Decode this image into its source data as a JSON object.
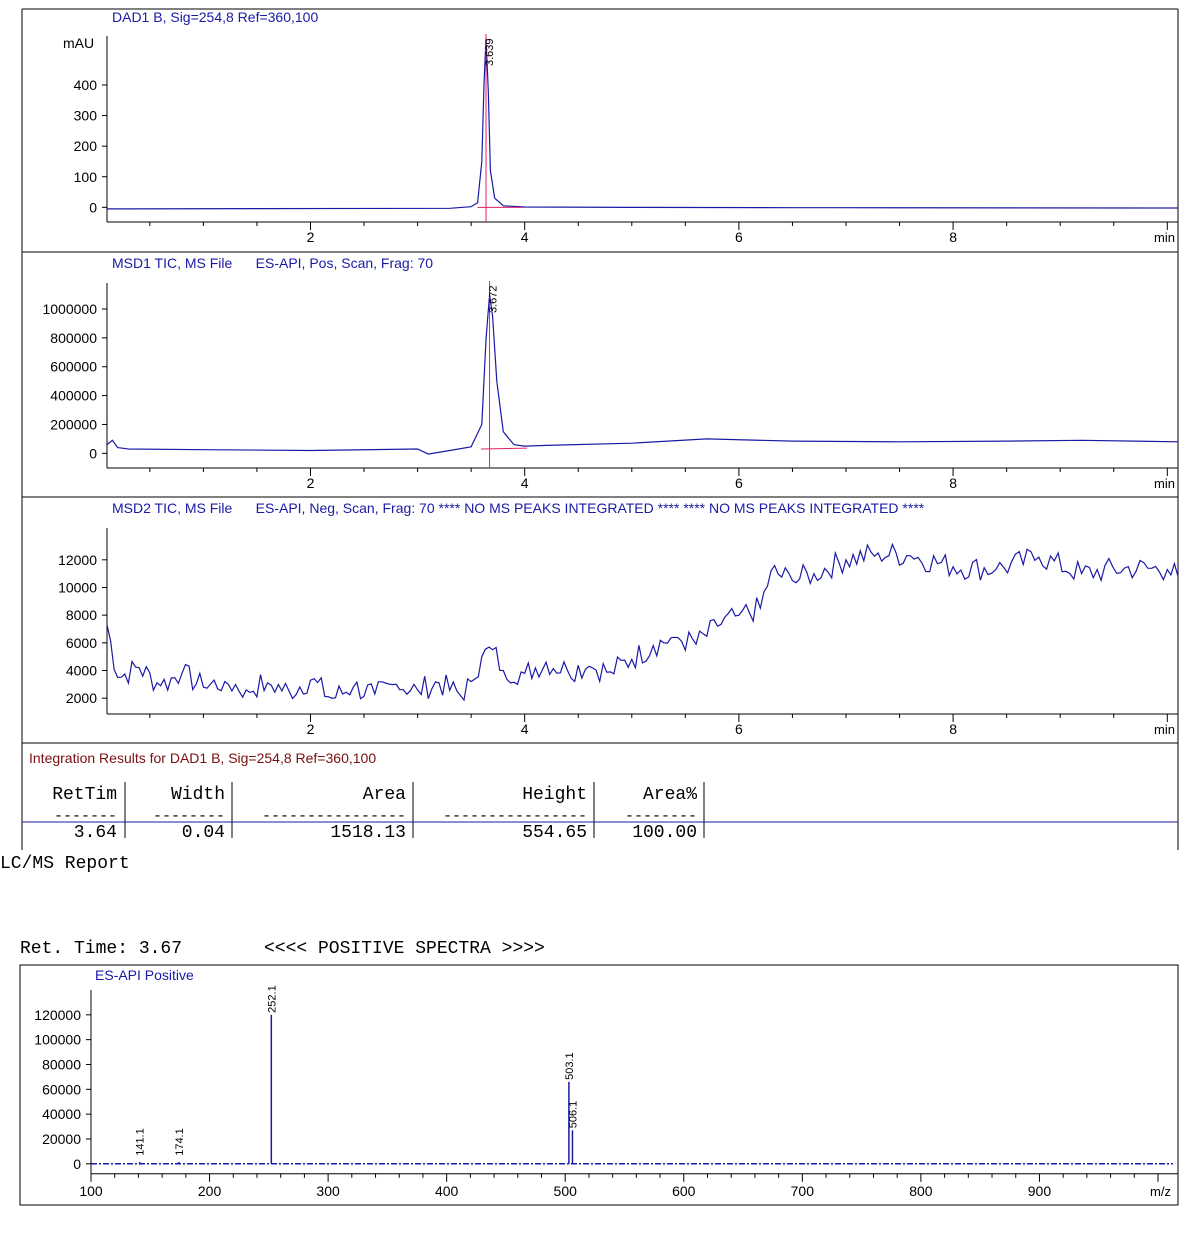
{
  "colors": {
    "trace": "#1a1aa6",
    "text_blue": "#1a1aa6",
    "marker": "#e0206a",
    "frame": "#000000",
    "integration_title": "#7a1010"
  },
  "panels": {
    "dad1": {
      "title": "DAD1 B, Sig=254,8 Ref=360,100",
      "y_unit": "mAU",
      "x_unit": "min",
      "peak_label": "3.639"
    },
    "msd1": {
      "title": "MSD1 TIC, MS File      ES-API, Pos, Scan, Frag: 70",
      "x_unit": "min",
      "peak_label": "3.672"
    },
    "msd2": {
      "title": "MSD2 TIC, MS File      ES-API, Neg, Scan, Frag: 70 **** NO MS PEAKS INTEGRATED **** **** NO MS PEAKS INTEGRATED ****",
      "x_unit": "min"
    }
  },
  "integration": {
    "title": "Integration Results for DAD1 B, Sig=254,8 Ref=360,100",
    "headers": [
      "RetTim",
      "Width",
      "Area",
      "Height",
      "Area%"
    ],
    "separators": [
      "-------",
      "--------",
      "----------------",
      "----------------",
      "--------"
    ],
    "row": [
      "3.64",
      "0.04",
      "1518.13",
      "554.65",
      "100.00"
    ]
  },
  "report_label": "LC/MS Report",
  "ret_time": "Ret. Time: 3.67",
  "spectra_header": "<<<< POSITIVE SPECTRA >>>>",
  "spectrum_title": "ES-API Positive",
  "spectrum_x_unit": "m/z",
  "chart_data": [
    {
      "type": "line",
      "title": "DAD1 B, Sig=254,8 Ref=360,100",
      "ylabel": "mAU",
      "xlabel": "min",
      "xlim": [
        0.1,
        10.1
      ],
      "ylim": [
        -25,
        560
      ],
      "x_ticks": [
        2,
        4,
        6,
        8
      ],
      "y_ticks": [
        0,
        100,
        200,
        300,
        400
      ],
      "x": [
        0.1,
        3.3,
        3.5,
        3.56,
        3.6,
        3.62,
        3.639,
        3.66,
        3.68,
        3.72,
        3.8,
        4.0,
        5.0,
        6.5,
        6.9,
        10.1
      ],
      "y": [
        -5,
        -3,
        2,
        15,
        150,
        400,
        554,
        380,
        120,
        30,
        5,
        1,
        0,
        -1,
        -1,
        -2
      ],
      "peak_labels": [
        {
          "x": 3.639,
          "y": 554,
          "text": "3.639"
        }
      ]
    },
    {
      "type": "line",
      "title": "MSD1 TIC, MS File ES-API, Pos, Scan, Frag: 70",
      "xlabel": "min",
      "xlim": [
        0.1,
        10.1
      ],
      "ylim": [
        -60000,
        1180000
      ],
      "x_ticks": [
        2,
        4,
        6,
        8
      ],
      "y_ticks": [
        0,
        200000,
        400000,
        600000,
        800000,
        1000000
      ],
      "x": [
        0.1,
        0.15,
        0.2,
        0.3,
        1.0,
        2.0,
        3.0,
        3.1,
        3.3,
        3.5,
        3.6,
        3.64,
        3.672,
        3.7,
        3.74,
        3.8,
        3.9,
        4.0,
        4.2,
        5.0,
        5.7,
        6.5,
        7.5,
        8.5,
        9.2,
        10.1
      ],
      "y": [
        60000,
        90000,
        40000,
        30000,
        25000,
        20000,
        30000,
        -5000,
        20000,
        45000,
        200000,
        800000,
        1100000,
        950000,
        500000,
        150000,
        60000,
        50000,
        55000,
        70000,
        100000,
        85000,
        80000,
        85000,
        90000,
        80000
      ],
      "peak_labels": [
        {
          "x": 3.672,
          "y": 1100000,
          "text": "3.672"
        }
      ]
    },
    {
      "type": "line",
      "title": "MSD2 TIC, MS File ES-API, Neg, Scan, Frag: 70",
      "xlabel": "min",
      "xlim": [
        0.1,
        10.1
      ],
      "ylim": [
        1000,
        14300
      ],
      "x_ticks": [
        2,
        4,
        6,
        8
      ],
      "y_ticks": [
        2000,
        4000,
        6000,
        8000,
        10000,
        12000
      ],
      "x": [
        0.1,
        0.2,
        0.4,
        0.6,
        0.8,
        1.0,
        1.2,
        1.4,
        1.6,
        1.8,
        2.0,
        2.2,
        2.4,
        2.6,
        2.8,
        3.0,
        3.2,
        3.4,
        3.5,
        3.6,
        3.7,
        3.8,
        4.0,
        4.2,
        4.4,
        4.6,
        4.8,
        5.0,
        5.2,
        5.4,
        5.6,
        5.8,
        6.0,
        6.2,
        6.3,
        6.5,
        6.7,
        7.0,
        7.3,
        7.6,
        8.0,
        8.4,
        8.8,
        9.2,
        9.6,
        10.0,
        10.1
      ],
      "y": [
        7300,
        3500,
        4200,
        2900,
        3800,
        2800,
        3200,
        2600,
        3100,
        2500,
        3300,
        2000,
        2800,
        2300,
        3000,
        2600,
        3100,
        2200,
        3200,
        5000,
        5500,
        4000,
        3800,
        4600,
        4000,
        4300,
        3900,
        4800,
        5800,
        6400,
        5900,
        7200,
        8000,
        8500,
        11200,
        10500,
        11000,
        12000,
        12500,
        12300,
        11500,
        11300,
        12200,
        11000,
        11400,
        11300,
        10800
      ],
      "noise_amplitude": 900
    },
    {
      "type": "bar",
      "title": "ES-API Positive",
      "xlabel": "m/z",
      "xlim": [
        100,
        1000
      ],
      "ylim": [
        -5000,
        140000
      ],
      "x_ticks": [
        100,
        200,
        300,
        400,
        500,
        600,
        700,
        800,
        900
      ],
      "y_ticks": [
        0,
        20000,
        40000,
        60000,
        80000,
        100000,
        120000
      ],
      "peaks": [
        {
          "mz": 141.1,
          "intensity": 1500,
          "label": "141.1"
        },
        {
          "mz": 174.1,
          "intensity": 1500,
          "label": "174.1"
        },
        {
          "mz": 252.1,
          "intensity": 120000,
          "label": "252.1"
        },
        {
          "mz": 503.1,
          "intensity": 66000,
          "label": "503.1"
        },
        {
          "mz": 506.1,
          "intensity": 27000,
          "label": "506.1"
        }
      ]
    }
  ]
}
